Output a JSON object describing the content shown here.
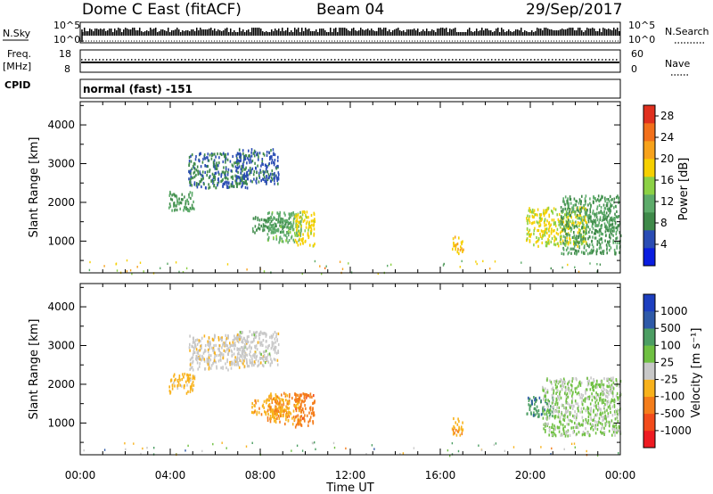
{
  "header": {
    "title": "Dome C East (fitACF)",
    "beam": "Beam 04",
    "date": "29/Sep/2017"
  },
  "strips": {
    "nsky": {
      "label": "N.Sky",
      "tick_top": "10^5",
      "tick_bottom": "10^0"
    },
    "nsearch": {
      "label": "N.Search",
      "tick_top": "10^5",
      "tick_bottom": "10^0"
    },
    "freq": {
      "label_line1": "Freq.",
      "label_line2": "[MHz]",
      "tick_top": "18",
      "tick_bottom": "8"
    },
    "nave": {
      "label": "Nave",
      "tick_top": "60",
      "tick_bottom": "0"
    },
    "cpid": {
      "label": "CPID",
      "mode": "normal (fast) -151"
    }
  },
  "colors": {
    "power": [
      "#0a1de0",
      "#2a4cb4",
      "#3f8a4a",
      "#5dab6a",
      "#8cd145",
      "#f6d000",
      "#f7a21b",
      "#f2701b",
      "#e0301e"
    ],
    "velocity": [
      "#ee1b22",
      "#f24b1b",
      "#f47d1b",
      "#f8b21c",
      "#c8c8c8",
      "#6fc042",
      "#4c9e63",
      "#2f5aa8",
      "#1d3fbf"
    ]
  },
  "chart_data": [
    {
      "type": "heatmap",
      "title": "",
      "xlabel": "",
      "ylabel": "Slant Range [km]",
      "x_ticks": [
        "00:00",
        "04:00",
        "08:00",
        "12:00",
        "16:00",
        "20:00",
        "00:00"
      ],
      "y_ticks": [
        "1000",
        "2000",
        "3000",
        "4000"
      ],
      "xlim_hours": [
        0,
        24
      ],
      "ylim_km": [
        180,
        4600
      ],
      "colorbar": {
        "label": "Power [dB]",
        "ticks": [
          "4",
          "8",
          "12",
          "16",
          "20",
          "24",
          "28"
        ],
        "range": [
          0,
          30
        ]
      },
      "regions": [
        {
          "t_start": 3.9,
          "t_end": 5.1,
          "r_min": 1800,
          "r_max": 2300,
          "value": 10
        },
        {
          "t_start": 4.8,
          "t_end": 7.4,
          "r_min": 2400,
          "r_max": 3300,
          "value": 7
        },
        {
          "t_start": 6.9,
          "t_end": 8.8,
          "r_min": 2500,
          "r_max": 3400,
          "value": 6
        },
        {
          "t_start": 7.6,
          "t_end": 9.3,
          "r_min": 1250,
          "r_max": 1650,
          "value": 9
        },
        {
          "t_start": 8.3,
          "t_end": 9.8,
          "r_min": 1000,
          "r_max": 1800,
          "value": 12
        },
        {
          "t_start": 9.5,
          "t_end": 10.4,
          "r_min": 900,
          "r_max": 1800,
          "value": 18
        },
        {
          "t_start": 16.5,
          "t_end": 17.0,
          "r_min": 700,
          "r_max": 1150,
          "value": 20
        },
        {
          "t_start": 19.8,
          "t_end": 22.5,
          "r_min": 900,
          "r_max": 1900,
          "value": 17
        },
        {
          "t_start": 21.3,
          "t_end": 24.0,
          "r_min": 700,
          "r_max": 2200,
          "value": 10
        }
      ]
    },
    {
      "type": "heatmap",
      "title": "",
      "xlabel": "Time UT",
      "ylabel": "Slant Range [km]",
      "x_ticks": [
        "00:00",
        "04:00",
        "08:00",
        "12:00",
        "16:00",
        "20:00",
        "00:00"
      ],
      "y_ticks": [
        "1000",
        "2000",
        "3000",
        "4000"
      ],
      "xlim_hours": [
        0,
        24
      ],
      "ylim_km": [
        180,
        4600
      ],
      "colorbar": {
        "label": "Velocity [m s⁻¹]",
        "ticks": [
          "-1000",
          "-500",
          "-100",
          "-25",
          "25",
          "100",
          "500",
          "1000"
        ],
        "range": [
          -1500,
          1500
        ]
      },
      "regions": [
        {
          "t_start": 3.9,
          "t_end": 5.1,
          "r_min": 1800,
          "r_max": 2300,
          "value": -300
        },
        {
          "t_start": 4.8,
          "t_end": 7.4,
          "r_min": 2400,
          "r_max": 3300,
          "value": -60
        },
        {
          "t_start": 6.9,
          "t_end": 8.8,
          "r_min": 2500,
          "r_max": 3400,
          "value": 0
        },
        {
          "t_start": 7.6,
          "t_end": 9.3,
          "r_min": 1250,
          "r_max": 1650,
          "value": -400
        },
        {
          "t_start": 8.3,
          "t_end": 9.8,
          "r_min": 1000,
          "r_max": 1800,
          "value": -450
        },
        {
          "t_start": 9.5,
          "t_end": 10.4,
          "r_min": 900,
          "r_max": 1800,
          "value": -700
        },
        {
          "t_start": 16.5,
          "t_end": 17.0,
          "r_min": 700,
          "r_max": 1150,
          "value": -400
        },
        {
          "t_start": 19.8,
          "t_end": 21.0,
          "r_min": 1200,
          "r_max": 1700,
          "value": 700
        },
        {
          "t_start": 20.5,
          "t_end": 24.0,
          "r_min": 700,
          "r_max": 2200,
          "value": 200
        }
      ]
    }
  ]
}
